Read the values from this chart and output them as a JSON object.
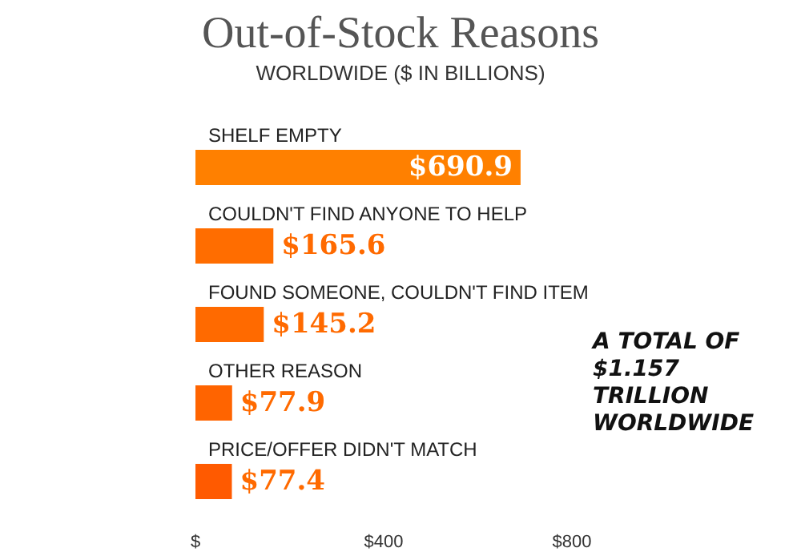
{
  "chart_data": {
    "type": "bar",
    "orientation": "horizontal",
    "title": "Out-of-Stock Reasons",
    "subtitle": "WORLDWIDE ($ IN BILLIONS)",
    "categories": [
      "SHELF EMPTY",
      "COULDN'T FIND ANYONE TO HELP",
      "FOUND SOMEONE, COULDN'T FIND ITEM",
      "OTHER REASON",
      "PRICE/OFFER DIDN'T MATCH"
    ],
    "values": [
      690.9,
      165.6,
      145.2,
      77.9,
      77.4
    ],
    "value_labels": [
      "$690.9",
      "$165.6",
      "$145.2",
      "$77.9",
      "$77.4"
    ],
    "colors": [
      "#ff8000",
      "#ff6d00",
      "#ff6a00",
      "#ff6400",
      "#ff5a00"
    ],
    "xlim": [
      0,
      800
    ],
    "xticks": [
      {
        "value": 0,
        "label": "$"
      },
      {
        "value": 400,
        "label": "$400"
      },
      {
        "value": 800,
        "label": "$800"
      }
    ],
    "annotations": [
      "A TOTAL OF $1.157 TRILLION WORLDWIDE"
    ],
    "grid": false
  }
}
